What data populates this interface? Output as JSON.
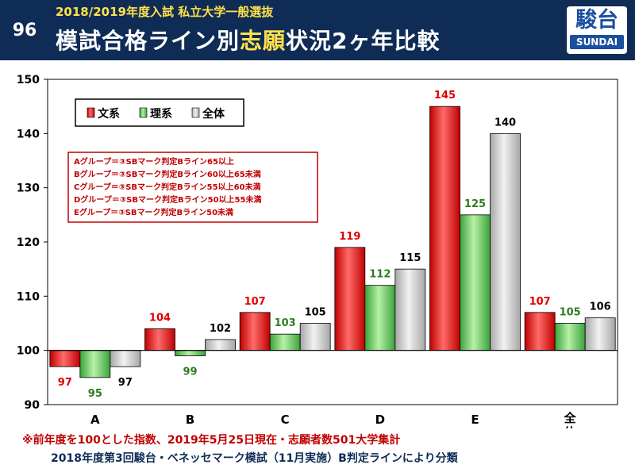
{
  "header": {
    "slide_number": "96",
    "subtitle": "2018/2019年度入試 私立大学一般選抜",
    "title_pre": "模試合格ライン別",
    "title_highlight": "志願",
    "title_post": "状況2ヶ年比較",
    "logo_main": "駿台",
    "logo_sub": "SUNDAI"
  },
  "legend": [
    "文系",
    "理系",
    "全体"
  ],
  "groups_note": [
    "Aグループ＝③SBマーク判定Bライン65以上",
    "Bグループ＝③SBマーク判定Bライン60以上65未満",
    "Cグループ＝③SBマーク判定Bライン55以上60未満",
    "Dグループ＝③SBマーク判定Bライン50以上55未満",
    "Eグループ＝③SBマーク判定Bライン50未満"
  ],
  "footnote_1": "※前年度を100とした指数、2019年5月25日現在・志願者数501大学集計",
  "footnote_2": "2018年度第3回駿台・ベネッセマーク模試（11月実施）B判定ラインにより分類",
  "colors": {
    "header_bg": "#0f2c56",
    "accent_yellow": "#ffe14a",
    "bunkei": "#c00000",
    "rikei": "#3aa33a",
    "zentai": "#a6a6a6",
    "label_bunkei": "#e00000",
    "label_rikei": "#2e7d1f",
    "label_zentai": "#000000"
  },
  "chart_data": {
    "type": "bar",
    "baseline": 100,
    "categories": [
      "A",
      "B",
      "C",
      "D",
      "E",
      "全体"
    ],
    "series": [
      {
        "name": "文系",
        "values": [
          97,
          104,
          107,
          119,
          145,
          107
        ]
      },
      {
        "name": "理系",
        "values": [
          95,
          99,
          103,
          112,
          125,
          105
        ]
      },
      {
        "name": "全体",
        "values": [
          97,
          102,
          105,
          115,
          140,
          106
        ]
      }
    ],
    "ylim": [
      90,
      150
    ],
    "yticks": [
      90,
      100,
      110,
      120,
      130,
      140,
      150
    ],
    "grid": false,
    "legend_position": "top-left"
  }
}
